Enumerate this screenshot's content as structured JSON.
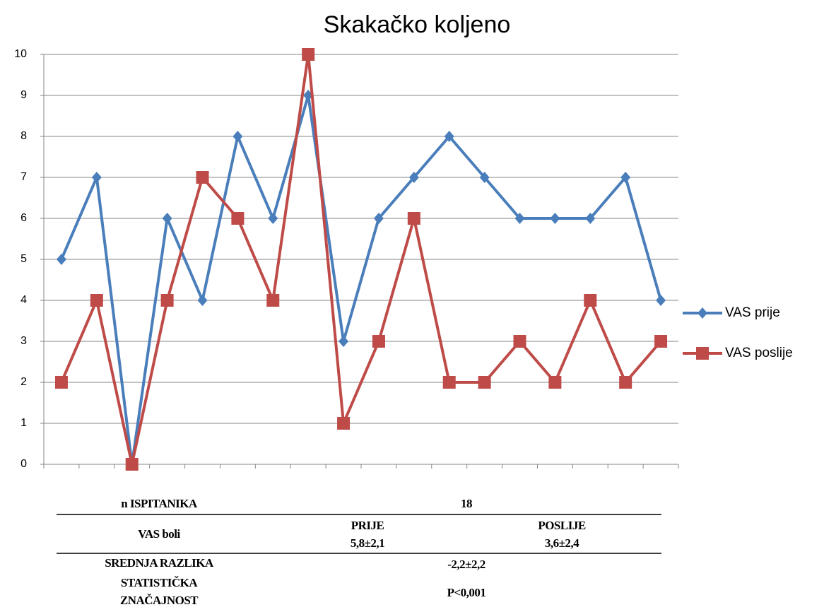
{
  "chart_data": {
    "type": "line",
    "title": "Skakačko koljeno",
    "categories": [
      null,
      null,
      null,
      null,
      null,
      null,
      null,
      null,
      null,
      null,
      null,
      null,
      null,
      null,
      null,
      null,
      null,
      null
    ],
    "series": [
      {
        "name": "VAS prije",
        "color": "#4a7ebb",
        "marker": "diamond",
        "values": [
          5,
          7,
          0,
          6,
          4,
          8,
          6,
          9,
          3,
          6,
          7,
          8,
          7,
          6,
          6,
          6,
          7,
          4
        ]
      },
      {
        "name": "VAS poslije",
        "color": "#be4b48",
        "marker": "square",
        "values": [
          2,
          4,
          0,
          4,
          7,
          6,
          4,
          10,
          1,
          3,
          6,
          2,
          2,
          3,
          2,
          4,
          2,
          3
        ]
      }
    ],
    "ylim": [
      0,
      10
    ],
    "yticks": [
      0,
      1,
      2,
      3,
      4,
      5,
      6,
      7,
      8,
      9,
      10
    ],
    "grid": true,
    "legend": "right"
  },
  "table": {
    "rows": [
      [
        "n ISPITANIKA",
        "18"
      ],
      [
        "VAS boli",
        "PRIJE",
        "5,8±2,1",
        "POSLIJE",
        "3,6±2,4"
      ],
      [
        "SREDNJA RAZLIKA",
        "-2,2±2,2"
      ],
      [
        "STATISTIČKA",
        "ZNAČAJNOST",
        "P<0,001"
      ]
    ]
  }
}
